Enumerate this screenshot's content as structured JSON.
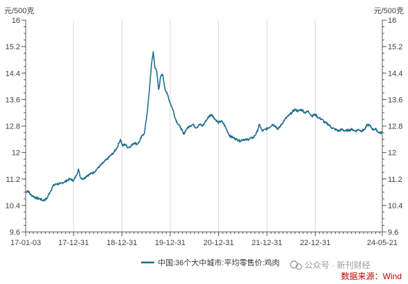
{
  "chart_data": {
    "type": "line",
    "y_unit_left": "元/500克",
    "y_unit_right": "元/500克",
    "ylim": [
      9.6,
      16
    ],
    "yticks": [
      "16",
      "15.2",
      "14.4",
      "13.6",
      "12.8",
      "12",
      "11.2",
      "10.4",
      "9.6"
    ],
    "ytick_values": [
      16,
      15.2,
      14.4,
      13.6,
      12.8,
      12,
      11.2,
      10.4,
      9.6
    ],
    "xlim": [
      "2017-01-03",
      "2024-05-21"
    ],
    "xticks": [
      "17-01-03",
      "17-12-31",
      "18-12-31",
      "19-12-31",
      "20-12-31",
      "21-12-31",
      "22-12-31",
      "24-05-21"
    ],
    "xtick_dates": [
      "2017-01-03",
      "2017-12-31",
      "2018-12-31",
      "2019-12-31",
      "2020-12-31",
      "2021-12-31",
      "2022-12-31",
      "2024-05-21"
    ],
    "grid": "vertical",
    "colors": {
      "series": "#1f6e8c",
      "axis": "#595959",
      "grid": "#d9d9d9",
      "source": "#c00000"
    },
    "legend_position": "bottom",
    "series": [
      {
        "name": "中国:36个大中城市:平均零售价:鸡肉",
        "points": [
          [
            "2017-01-03",
            10.8
          ],
          [
            "2017-01-20",
            10.85
          ],
          [
            "2017-02-10",
            10.72
          ],
          [
            "2017-03-01",
            10.68
          ],
          [
            "2017-03-25",
            10.62
          ],
          [
            "2017-04-20",
            10.6
          ],
          [
            "2017-05-15",
            10.55
          ],
          [
            "2017-06-10",
            10.6
          ],
          [
            "2017-07-05",
            10.8
          ],
          [
            "2017-07-30",
            11.0
          ],
          [
            "2017-08-25",
            11.05
          ],
          [
            "2017-09-20",
            11.05
          ],
          [
            "2017-10-15",
            11.1
          ],
          [
            "2017-11-10",
            11.15
          ],
          [
            "2017-12-05",
            11.2
          ],
          [
            "2017-12-31",
            11.15
          ],
          [
            "2018-01-20",
            11.3
          ],
          [
            "2018-02-05",
            11.5
          ],
          [
            "2018-02-20",
            11.25
          ],
          [
            "2018-03-15",
            11.2
          ],
          [
            "2018-04-10",
            11.3
          ],
          [
            "2018-05-05",
            11.35
          ],
          [
            "2018-06-01",
            11.4
          ],
          [
            "2018-06-25",
            11.5
          ],
          [
            "2018-07-20",
            11.6
          ],
          [
            "2018-08-15",
            11.7
          ],
          [
            "2018-09-10",
            11.8
          ],
          [
            "2018-10-05",
            11.9
          ],
          [
            "2018-10-30",
            12.0
          ],
          [
            "2018-11-25",
            12.15
          ],
          [
            "2018-12-10",
            12.3
          ],
          [
            "2018-12-20",
            12.4
          ],
          [
            "2019-01-05",
            12.2
          ],
          [
            "2019-01-25",
            12.25
          ],
          [
            "2019-02-15",
            12.15
          ],
          [
            "2019-03-10",
            12.2
          ],
          [
            "2019-04-05",
            12.3
          ],
          [
            "2019-04-25",
            12.25
          ],
          [
            "2019-05-15",
            12.35
          ],
          [
            "2019-06-01",
            12.5
          ],
          [
            "2019-06-20",
            12.6
          ],
          [
            "2019-07-10",
            13.2
          ],
          [
            "2019-07-25",
            13.8
          ],
          [
            "2019-08-10",
            14.6
          ],
          [
            "2019-08-25",
            15.05
          ],
          [
            "2019-09-05",
            14.6
          ],
          [
            "2019-09-20",
            14.45
          ],
          [
            "2019-10-05",
            13.9
          ],
          [
            "2019-10-20",
            14.3
          ],
          [
            "2019-11-05",
            14.35
          ],
          [
            "2019-11-20",
            13.95
          ],
          [
            "2019-12-10",
            13.75
          ],
          [
            "2019-12-31",
            13.5
          ],
          [
            "2020-01-20",
            13.3
          ],
          [
            "2020-02-10",
            13.0
          ],
          [
            "2020-03-01",
            12.85
          ],
          [
            "2020-03-20",
            12.75
          ],
          [
            "2020-04-10",
            12.55
          ],
          [
            "2020-05-01",
            12.7
          ],
          [
            "2020-05-25",
            12.8
          ],
          [
            "2020-06-20",
            12.85
          ],
          [
            "2020-07-15",
            12.75
          ],
          [
            "2020-08-10",
            12.85
          ],
          [
            "2020-09-01",
            12.8
          ],
          [
            "2020-09-25",
            12.95
          ],
          [
            "2020-10-20",
            13.1
          ],
          [
            "2020-11-10",
            13.15
          ],
          [
            "2020-12-05",
            13.0
          ],
          [
            "2020-12-31",
            12.9
          ],
          [
            "2021-01-20",
            12.95
          ],
          [
            "2021-02-10",
            12.85
          ],
          [
            "2021-03-01",
            12.7
          ],
          [
            "2021-03-25",
            12.5
          ],
          [
            "2021-04-20",
            12.45
          ],
          [
            "2021-05-15",
            12.4
          ],
          [
            "2021-06-10",
            12.35
          ],
          [
            "2021-07-05",
            12.4
          ],
          [
            "2021-08-01",
            12.38
          ],
          [
            "2021-08-25",
            12.42
          ],
          [
            "2021-09-20",
            12.45
          ],
          [
            "2021-10-15",
            12.6
          ],
          [
            "2021-11-05",
            12.85
          ],
          [
            "2021-11-25",
            12.65
          ],
          [
            "2021-12-20",
            12.7
          ],
          [
            "2022-01-15",
            12.75
          ],
          [
            "2022-02-10",
            12.85
          ],
          [
            "2022-03-05",
            12.8
          ],
          [
            "2022-03-25",
            12.7
          ],
          [
            "2022-04-20",
            12.85
          ],
          [
            "2022-05-15",
            13.0
          ],
          [
            "2022-06-10",
            13.1
          ],
          [
            "2022-07-05",
            13.2
          ],
          [
            "2022-07-30",
            13.3
          ],
          [
            "2022-08-25",
            13.25
          ],
          [
            "2022-09-20",
            13.3
          ],
          [
            "2022-10-15",
            13.2
          ],
          [
            "2022-11-10",
            13.25
          ],
          [
            "2022-12-05",
            13.1
          ],
          [
            "2022-12-31",
            13.15
          ],
          [
            "2023-01-25",
            13.05
          ],
          [
            "2023-02-20",
            13.0
          ],
          [
            "2023-03-15",
            12.9
          ],
          [
            "2023-04-10",
            12.85
          ],
          [
            "2023-05-05",
            12.75
          ],
          [
            "2023-06-01",
            12.7
          ],
          [
            "2023-06-25",
            12.65
          ],
          [
            "2023-07-20",
            12.7
          ],
          [
            "2023-08-15",
            12.65
          ],
          [
            "2023-09-10",
            12.68
          ],
          [
            "2023-10-05",
            12.7
          ],
          [
            "2023-11-01",
            12.65
          ],
          [
            "2023-11-25",
            12.7
          ],
          [
            "2023-12-15",
            12.65
          ],
          [
            "2024-01-10",
            12.7
          ],
          [
            "2024-01-30",
            12.85
          ],
          [
            "2024-02-20",
            12.8
          ],
          [
            "2024-03-10",
            12.7
          ],
          [
            "2024-04-05",
            12.7
          ],
          [
            "2024-04-25",
            12.6
          ],
          [
            "2024-05-21",
            12.6
          ]
        ]
      }
    ]
  },
  "legend": {
    "label": "中国:36个大中城市:平均零售价:鸡肉"
  },
  "source": {
    "text": "数据来源：Wind"
  },
  "watermark": {
    "text": "公众号 · 新刊财经"
  }
}
